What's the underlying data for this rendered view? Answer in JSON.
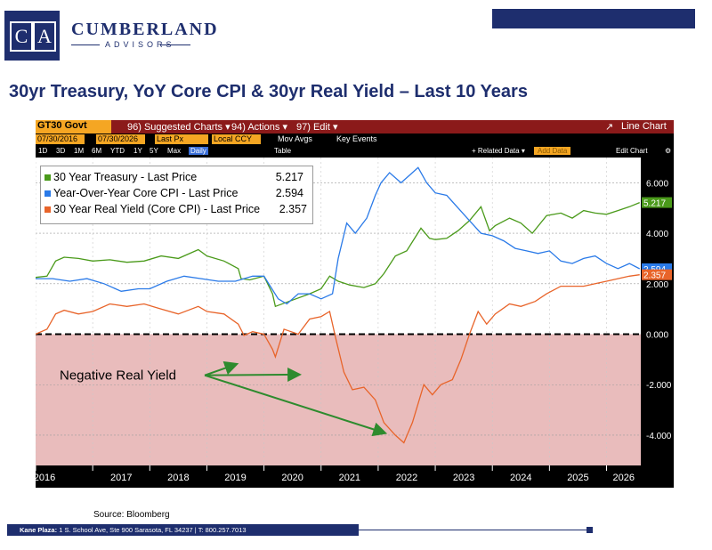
{
  "brand": {
    "logo_letters": [
      "C",
      "A"
    ],
    "name": "CUMBERLAND",
    "sub": "ADVISORS",
    "color": "#1e2e6e"
  },
  "page_title": "30yr Treasury, YoY Core CPI & 30yr Real Yield – Last 10 Years",
  "terminal": {
    "ticker": "GT30 Govt",
    "menu": [
      "96) Suggested Charts ▾",
      "94) Actions ▾",
      "97) Edit ▾"
    ],
    "line_chart_label": "Line Chart",
    "start_date": "07/30/2016",
    "end_date": "07/30/2026",
    "field": "Last Px",
    "currency": "Local CCY",
    "mov_avgs": "Mov Avgs",
    "key_events": "Key Events",
    "periods": [
      "1D",
      "3D",
      "1M",
      "6M",
      "YTD",
      "1Y",
      "5Y",
      "Max"
    ],
    "frequency": "Daily",
    "table_label": "Table",
    "related_data": "+ Related Data ▾",
    "add_data": "Add Data",
    "edit_chart": "Edit Chart"
  },
  "chart_data": {
    "type": "line",
    "x_labels": [
      "2016",
      "2017",
      "2018",
      "2019",
      "2020",
      "2021",
      "2022",
      "2023",
      "2024",
      "2025",
      "2026"
    ],
    "xlim": [
      2016.0,
      2026.6
    ],
    "ylim": [
      -5.2,
      7.0
    ],
    "y_ticks": [
      6,
      4,
      2,
      0,
      -2,
      -4
    ],
    "y_tick_labels": [
      "6.000",
      "4.000",
      "2.000",
      "0.000",
      "-2.000",
      "-4.000"
    ],
    "grid": true,
    "zero_line": "dashed",
    "negative_region_shaded": true,
    "legend_position": "top-left",
    "series": [
      {
        "name": "30 Year Treasury - Last Price",
        "last_value": "5.217",
        "color": "#4a9a1a",
        "points": [
          [
            2016.0,
            2.25
          ],
          [
            2016.2,
            2.3
          ],
          [
            2016.35,
            2.9
          ],
          [
            2016.5,
            3.05
          ],
          [
            2016.75,
            3.0
          ],
          [
            2017.0,
            2.9
          ],
          [
            2017.3,
            2.95
          ],
          [
            2017.6,
            2.85
          ],
          [
            2017.9,
            2.9
          ],
          [
            2018.2,
            3.1
          ],
          [
            2018.5,
            3.0
          ],
          [
            2018.85,
            3.35
          ],
          [
            2019.0,
            3.1
          ],
          [
            2019.3,
            2.9
          ],
          [
            2019.55,
            2.6
          ],
          [
            2019.6,
            2.2
          ],
          [
            2019.75,
            2.15
          ],
          [
            2020.0,
            2.3
          ],
          [
            2020.15,
            1.6
          ],
          [
            2020.2,
            1.1
          ],
          [
            2020.5,
            1.35
          ],
          [
            2020.8,
            1.6
          ],
          [
            2021.0,
            1.8
          ],
          [
            2021.15,
            2.3
          ],
          [
            2021.3,
            2.1
          ],
          [
            2021.5,
            1.95
          ],
          [
            2021.75,
            1.85
          ],
          [
            2021.95,
            2.0
          ],
          [
            2022.1,
            2.4
          ],
          [
            2022.3,
            3.1
          ],
          [
            2022.5,
            3.3
          ],
          [
            2022.75,
            4.2
          ],
          [
            2022.9,
            3.8
          ],
          [
            2023.0,
            3.75
          ],
          [
            2023.2,
            3.8
          ],
          [
            2023.4,
            4.1
          ],
          [
            2023.6,
            4.5
          ],
          [
            2023.8,
            5.05
          ],
          [
            2023.95,
            4.1
          ],
          [
            2024.05,
            4.3
          ],
          [
            2024.3,
            4.6
          ],
          [
            2024.5,
            4.4
          ],
          [
            2024.7,
            4.0
          ],
          [
            2024.95,
            4.7
          ],
          [
            2025.2,
            4.8
          ],
          [
            2025.4,
            4.6
          ],
          [
            2025.6,
            4.9
          ],
          [
            2025.8,
            4.8
          ],
          [
            2026.0,
            4.75
          ],
          [
            2026.2,
            4.9
          ],
          [
            2026.4,
            5.05
          ],
          [
            2026.58,
            5.217
          ]
        ]
      },
      {
        "name": "Year-Over-Year Core CPI - Last Price",
        "last_value": "2.594",
        "color": "#2a7ae8",
        "points": [
          [
            2016.0,
            2.2
          ],
          [
            2016.3,
            2.2
          ],
          [
            2016.6,
            2.1
          ],
          [
            2016.9,
            2.2
          ],
          [
            2017.2,
            2.0
          ],
          [
            2017.5,
            1.7
          ],
          [
            2017.8,
            1.8
          ],
          [
            2018.0,
            1.8
          ],
          [
            2018.3,
            2.1
          ],
          [
            2018.6,
            2.3
          ],
          [
            2018.9,
            2.2
          ],
          [
            2019.2,
            2.1
          ],
          [
            2019.5,
            2.1
          ],
          [
            2019.8,
            2.3
          ],
          [
            2020.0,
            2.3
          ],
          [
            2020.25,
            1.4
          ],
          [
            2020.4,
            1.2
          ],
          [
            2020.6,
            1.6
          ],
          [
            2020.8,
            1.6
          ],
          [
            2021.0,
            1.4
          ],
          [
            2021.2,
            1.6
          ],
          [
            2021.3,
            3.0
          ],
          [
            2021.45,
            4.4
          ],
          [
            2021.6,
            4.0
          ],
          [
            2021.8,
            4.6
          ],
          [
            2021.95,
            5.5
          ],
          [
            2022.05,
            6.0
          ],
          [
            2022.2,
            6.4
          ],
          [
            2022.4,
            6.0
          ],
          [
            2022.55,
            6.3
          ],
          [
            2022.7,
            6.6
          ],
          [
            2022.85,
            6.0
          ],
          [
            2023.0,
            5.6
          ],
          [
            2023.2,
            5.5
          ],
          [
            2023.4,
            5.0
          ],
          [
            2023.6,
            4.5
          ],
          [
            2023.8,
            4.0
          ],
          [
            2024.0,
            3.9
          ],
          [
            2024.2,
            3.7
          ],
          [
            2024.4,
            3.4
          ],
          [
            2024.6,
            3.3
          ],
          [
            2024.8,
            3.2
          ],
          [
            2025.0,
            3.3
          ],
          [
            2025.2,
            2.9
          ],
          [
            2025.4,
            2.8
          ],
          [
            2025.6,
            3.0
          ],
          [
            2025.8,
            3.1
          ],
          [
            2026.0,
            2.8
          ],
          [
            2026.2,
            2.6
          ],
          [
            2026.4,
            2.8
          ],
          [
            2026.58,
            2.594
          ]
        ]
      },
      {
        "name": "30 Year Real Yield (Core CPI) - Last Price",
        "last_value": "2.357",
        "color": "#e8642a",
        "points": [
          [
            2016.0,
            0.0
          ],
          [
            2016.2,
            0.2
          ],
          [
            2016.35,
            0.8
          ],
          [
            2016.5,
            0.95
          ],
          [
            2016.75,
            0.8
          ],
          [
            2017.0,
            0.9
          ],
          [
            2017.3,
            1.2
          ],
          [
            2017.6,
            1.1
          ],
          [
            2017.9,
            1.2
          ],
          [
            2018.2,
            1.0
          ],
          [
            2018.5,
            0.8
          ],
          [
            2018.85,
            1.1
          ],
          [
            2019.0,
            0.9
          ],
          [
            2019.3,
            0.8
          ],
          [
            2019.55,
            0.4
          ],
          [
            2019.65,
            -0.05
          ],
          [
            2019.8,
            0.1
          ],
          [
            2020.0,
            0.0
          ],
          [
            2020.15,
            -0.6
          ],
          [
            2020.2,
            -0.9
          ],
          [
            2020.35,
            0.2
          ],
          [
            2020.6,
            0.0
          ],
          [
            2020.8,
            0.6
          ],
          [
            2021.0,
            0.7
          ],
          [
            2021.15,
            0.9
          ],
          [
            2021.25,
            -0.1
          ],
          [
            2021.4,
            -1.5
          ],
          [
            2021.55,
            -2.2
          ],
          [
            2021.75,
            -2.1
          ],
          [
            2021.95,
            -2.6
          ],
          [
            2022.1,
            -3.5
          ],
          [
            2022.3,
            -4.0
          ],
          [
            2022.45,
            -4.3
          ],
          [
            2022.6,
            -3.5
          ],
          [
            2022.8,
            -2.0
          ],
          [
            2022.95,
            -2.4
          ],
          [
            2023.1,
            -2.0
          ],
          [
            2023.3,
            -1.8
          ],
          [
            2023.45,
            -1.0
          ],
          [
            2023.6,
            0.0
          ],
          [
            2023.75,
            0.9
          ],
          [
            2023.9,
            0.4
          ],
          [
            2024.05,
            0.8
          ],
          [
            2024.3,
            1.2
          ],
          [
            2024.5,
            1.1
          ],
          [
            2024.75,
            1.3
          ],
          [
            2024.95,
            1.6
          ],
          [
            2025.2,
            1.9
          ],
          [
            2025.4,
            1.9
          ],
          [
            2025.6,
            1.9
          ],
          [
            2025.8,
            2.0
          ],
          [
            2026.0,
            2.1
          ],
          [
            2026.2,
            2.2
          ],
          [
            2026.4,
            2.3
          ],
          [
            2026.58,
            2.357
          ]
        ]
      }
    ],
    "annotation": {
      "text": "Negative Real Yield",
      "arrow_targets": [
        [
          2019.5,
          -1.2
        ],
        [
          2020.6,
          -1.6
        ],
        [
          2022.1,
          -3.9
        ]
      ]
    }
  },
  "footer": {
    "source": "Source: Bloomberg",
    "address_bold": "Kane Plaza:",
    "address": "1 S. School Ave, Ste 900  Sarasota, FL 34237   |   T: 800.257.7013"
  }
}
